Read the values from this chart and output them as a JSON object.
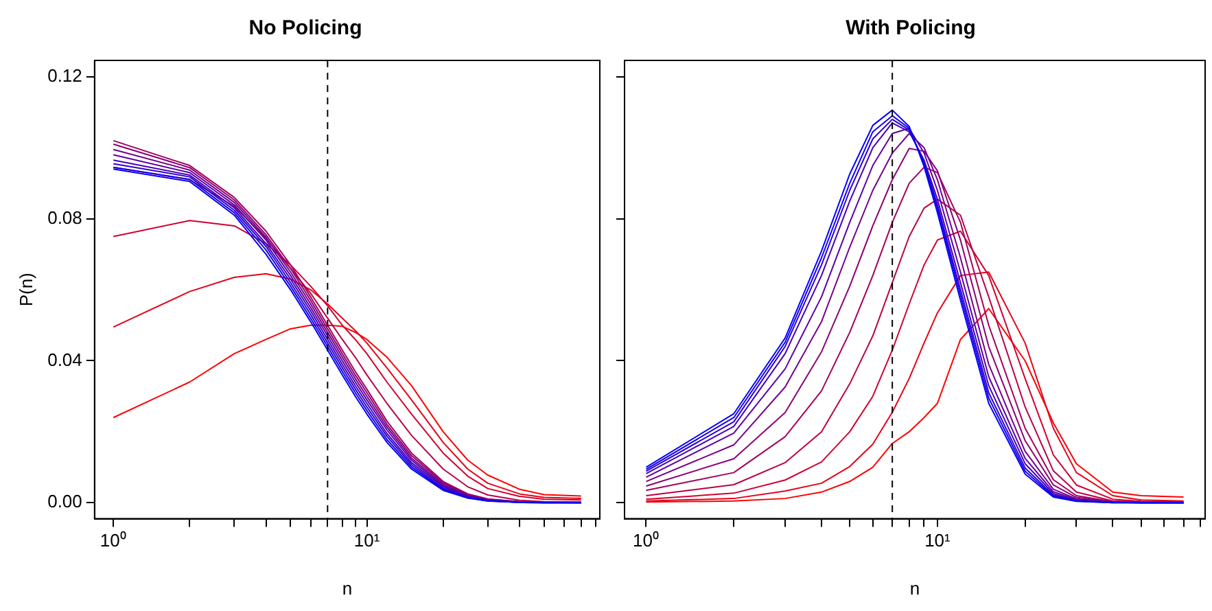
{
  "chart_data": [
    {
      "type": "line",
      "title": "No Policing",
      "xlabel": "n",
      "ylabel": "P(n)",
      "log": "x",
      "legend": false,
      "grid": false,
      "marker": "none",
      "line_style": "solid",
      "xlim": [
        0.843,
        83
      ],
      "ylim": [
        -0.0045,
        0.1246
      ],
      "xticks": [
        {
          "value": 1,
          "label": "10⁰"
        },
        {
          "value": 2,
          "label": null
        },
        {
          "value": 3,
          "label": null
        },
        {
          "value": 4,
          "label": null
        },
        {
          "value": 5,
          "label": null
        },
        {
          "value": 6,
          "label": null
        },
        {
          "value": 7,
          "label": null
        },
        {
          "value": 8,
          "label": null
        },
        {
          "value": 9,
          "label": null
        },
        {
          "value": 10,
          "label": "10¹"
        },
        {
          "value": 20,
          "label": null
        },
        {
          "value": 30,
          "label": null
        },
        {
          "value": 40,
          "label": null
        },
        {
          "value": 50,
          "label": null
        },
        {
          "value": 60,
          "label": null
        },
        {
          "value": 70,
          "label": null
        },
        {
          "value": 80,
          "label": null
        }
      ],
      "yticks": [
        {
          "value": 0,
          "label": "0.00"
        },
        {
          "value": 0.04,
          "label": "0.04"
        },
        {
          "value": 0.08,
          "label": "0.08"
        },
        {
          "value": 0.12,
          "label": "0.12"
        }
      ],
      "ref_lines": [
        {
          "axis": "x",
          "value": 7,
          "line_style": "dashed",
          "color": "#000000"
        }
      ],
      "x": [
        1,
        2,
        3,
        4,
        5,
        6,
        7,
        8,
        9,
        10,
        12,
        15,
        20,
        25,
        30,
        40,
        50,
        70
      ],
      "series": [
        {
          "color": "#ff0000",
          "values": [
            0.024,
            0.034,
            0.042,
            0.046,
            0.049,
            0.05,
            0.05,
            0.0497,
            0.048,
            0.046,
            0.041,
            0.033,
            0.02,
            0.012,
            0.0078,
            0.0038,
            0.0023,
            0.0019
          ]
        },
        {
          "color": "#e80017",
          "values": [
            0.0495,
            0.0595,
            0.0635,
            0.0645,
            0.063,
            0.06,
            0.056,
            0.052,
            0.0485,
            0.045,
            0.038,
            0.029,
            0.017,
            0.0095,
            0.0055,
            0.0025,
            0.0015,
            0.0012
          ]
        },
        {
          "color": "#d1002e",
          "values": [
            0.075,
            0.0795,
            0.078,
            0.073,
            0.067,
            0.061,
            0.0555,
            0.05,
            0.046,
            0.042,
            0.034,
            0.025,
            0.014,
            0.0075,
            0.004,
            0.0018,
            0.001,
            0.0008
          ]
        },
        {
          "color": "#ba0045",
          "values": [
            0.0945,
            0.091,
            0.0835,
            0.0745,
            0.066,
            0.059,
            0.052,
            0.046,
            0.041,
            0.036,
            0.028,
            0.019,
            0.0095,
            0.0045,
            0.0022,
            0.0007,
            0.0003,
            0.0002
          ]
        },
        {
          "color": "#a3005c",
          "values": [
            0.102,
            0.095,
            0.086,
            0.0765,
            0.067,
            0.058,
            0.05,
            0.043,
            0.037,
            0.032,
            0.023,
            0.014,
            0.006,
            0.0025,
            0.0011,
            0.0003,
            0.0001,
            0.0001
          ]
        },
        {
          "color": "#8b0074",
          "values": [
            0.101,
            0.0944,
            0.0853,
            0.0755,
            0.066,
            0.057,
            0.049,
            0.042,
            0.036,
            0.031,
            0.0221,
            0.0133,
            0.0056,
            0.0023,
            0.001,
            0.0003,
            0.0001,
            0.0001
          ]
        },
        {
          "color": "#74008b",
          "values": [
            0.0995,
            0.0937,
            0.0846,
            0.0748,
            0.065,
            0.056,
            0.048,
            0.041,
            0.035,
            0.03,
            0.0213,
            0.0126,
            0.0052,
            0.0021,
            0.0009,
            0.0002,
            0.0001,
            0
          ]
        },
        {
          "color": "#5c00a3",
          "values": [
            0.098,
            0.093,
            0.0839,
            0.074,
            0.064,
            0.055,
            0.047,
            0.04,
            0.034,
            0.029,
            0.0205,
            0.012,
            0.0048,
            0.0019,
            0.0008,
            0.0002,
            0.0001,
            0
          ]
        },
        {
          "color": "#4500ba",
          "values": [
            0.0965,
            0.0923,
            0.0831,
            0.073,
            0.063,
            0.054,
            0.046,
            0.039,
            0.033,
            0.028,
            0.0195,
            0.0113,
            0.0045,
            0.0017,
            0.0007,
            0.0002,
            0,
            0
          ]
        },
        {
          "color": "#2e00d1",
          "values": [
            0.0955,
            0.0918,
            0.0824,
            0.0722,
            0.062,
            0.053,
            0.045,
            0.038,
            0.032,
            0.027,
            0.0187,
            0.0107,
            0.0041,
            0.0016,
            0.0006,
            0.0001,
            0,
            0
          ]
        },
        {
          "color": "#1700e8",
          "values": [
            0.0945,
            0.0911,
            0.0817,
            0.0712,
            0.061,
            0.052,
            0.044,
            0.037,
            0.031,
            0.026,
            0.0178,
            0.0101,
            0.0038,
            0.0014,
            0.0005,
            0.0001,
            0,
            0
          ]
        },
        {
          "color": "#0000ff",
          "values": [
            0.094,
            0.0905,
            0.081,
            0.07,
            0.06,
            0.051,
            0.043,
            0.036,
            0.03,
            0.025,
            0.017,
            0.0095,
            0.0035,
            0.0013,
            0.0005,
            0.0001,
            0,
            0
          ]
        }
      ]
    },
    {
      "type": "line",
      "title": "With Policing",
      "xlabel": "n",
      "log": "x",
      "legend": false,
      "grid": false,
      "marker": "none",
      "line_style": "solid",
      "tick_labels": "x",
      "xlim": [
        0.843,
        83
      ],
      "ylim": [
        -0.0045,
        0.1246
      ],
      "xticks": [
        {
          "value": 1,
          "label": "10⁰"
        },
        {
          "value": 2,
          "label": null
        },
        {
          "value": 3,
          "label": null
        },
        {
          "value": 4,
          "label": null
        },
        {
          "value": 5,
          "label": null
        },
        {
          "value": 6,
          "label": null
        },
        {
          "value": 7,
          "label": null
        },
        {
          "value": 8,
          "label": null
        },
        {
          "value": 9,
          "label": null
        },
        {
          "value": 10,
          "label": "10¹"
        },
        {
          "value": 20,
          "label": null
        },
        {
          "value": 30,
          "label": null
        },
        {
          "value": 40,
          "label": null
        },
        {
          "value": 50,
          "label": null
        },
        {
          "value": 60,
          "label": null
        },
        {
          "value": 70,
          "label": null
        },
        {
          "value": 80,
          "label": null
        }
      ],
      "yticks": [
        {
          "value": 0,
          "label": null
        },
        {
          "value": 0.04,
          "label": null
        },
        {
          "value": 0.08,
          "label": null
        },
        {
          "value": 0.12,
          "label": null
        }
      ],
      "ref_lines": [
        {
          "axis": "x",
          "value": 7,
          "line_style": "dashed",
          "color": "#000000"
        }
      ],
      "x": [
        1,
        2,
        3,
        4,
        5,
        6,
        7,
        8,
        9,
        10,
        12,
        15,
        20,
        25,
        30,
        40,
        50,
        70
      ],
      "series": [
        {
          "color": "#ff0000",
          "values": [
            0.0002,
            0.0005,
            0.0012,
            0.003,
            0.006,
            0.01,
            0.0167,
            0.02,
            0.024,
            0.028,
            0.046,
            0.0547,
            0.04,
            0.0225,
            0.011,
            0.003,
            0.002,
            0.0016
          ]
        },
        {
          "color": "#e80017",
          "values": [
            0.0005,
            0.0012,
            0.0033,
            0.0055,
            0.0102,
            0.0165,
            0.0255,
            0.035,
            0.045,
            0.0535,
            0.064,
            0.065,
            0.045,
            0.021,
            0.0085,
            0.002,
            0.0008,
            0.0005
          ]
        },
        {
          "color": "#d1002e",
          "values": [
            0.001,
            0.0027,
            0.0064,
            0.0115,
            0.02,
            0.03,
            0.043,
            0.056,
            0.067,
            0.074,
            0.0765,
            0.064,
            0.035,
            0.0135,
            0.005,
            0.001,
            0.0004,
            0.0002
          ]
        },
        {
          "color": "#ba0045",
          "values": [
            0.002,
            0.0051,
            0.0113,
            0.02,
            0.0335,
            0.047,
            0.062,
            0.075,
            0.083,
            0.0855,
            0.081,
            0.058,
            0.027,
            0.009,
            0.003,
            0.0005,
            0.0002,
            0.0001
          ]
        },
        {
          "color": "#a3005c",
          "values": [
            0.0035,
            0.0085,
            0.0186,
            0.0315,
            0.048,
            0.064,
            0.079,
            0.09,
            0.0945,
            0.093,
            0.079,
            0.05,
            0.021,
            0.0065,
            0.002,
            0.0003,
            0.0001,
            0
          ]
        },
        {
          "color": "#8b0074",
          "values": [
            0.0047,
            0.0124,
            0.0254,
            0.0425,
            0.061,
            0.078,
            0.091,
            0.0998,
            0.099,
            0.0935,
            0.074,
            0.044,
            0.0175,
            0.005,
            0.0015,
            0.0002,
            0,
            0
          ]
        },
        {
          "color": "#74008b",
          "values": [
            0.006,
            0.0163,
            0.0326,
            0.051,
            0.072,
            0.088,
            0.0985,
            0.104,
            0.1,
            0.091,
            0.069,
            0.039,
            0.0145,
            0.0038,
            0.0011,
            0.0002,
            0,
            0
          ]
        },
        {
          "color": "#5c00a3",
          "values": [
            0.0072,
            0.0196,
            0.0377,
            0.058,
            0.079,
            0.095,
            0.104,
            0.1055,
            0.0985,
            0.088,
            0.065,
            0.0355,
            0.0125,
            0.0031,
            0.0009,
            0.0001,
            0,
            0
          ]
        },
        {
          "color": "#4500ba",
          "values": [
            0.0082,
            0.0215,
            0.042,
            0.064,
            0.085,
            0.1,
            0.107,
            0.1045,
            0.0965,
            0.0855,
            0.062,
            0.033,
            0.011,
            0.0026,
            0.0007,
            0.0001,
            0,
            0
          ]
        },
        {
          "color": "#2e00d1",
          "values": [
            0.0089,
            0.0228,
            0.044,
            0.067,
            0.088,
            0.1025,
            0.108,
            0.105,
            0.096,
            0.084,
            0.06,
            0.031,
            0.0098,
            0.0022,
            0.0006,
            0.0001,
            0,
            0
          ]
        },
        {
          "color": "#1700e8",
          "values": [
            0.0094,
            0.024,
            0.0452,
            0.069,
            0.09,
            0.1045,
            0.109,
            0.1055,
            0.0955,
            0.083,
            0.0585,
            0.0295,
            0.0089,
            0.0019,
            0.0005,
            0,
            0,
            0
          ]
        },
        {
          "color": "#0000ff",
          "values": [
            0.01,
            0.0251,
            0.0464,
            0.0709,
            0.0926,
            0.1063,
            0.1106,
            0.106,
            0.0947,
            0.0817,
            0.057,
            0.028,
            0.0081,
            0.0016,
            0.0004,
            0,
            0,
            0
          ]
        }
      ]
    }
  ]
}
